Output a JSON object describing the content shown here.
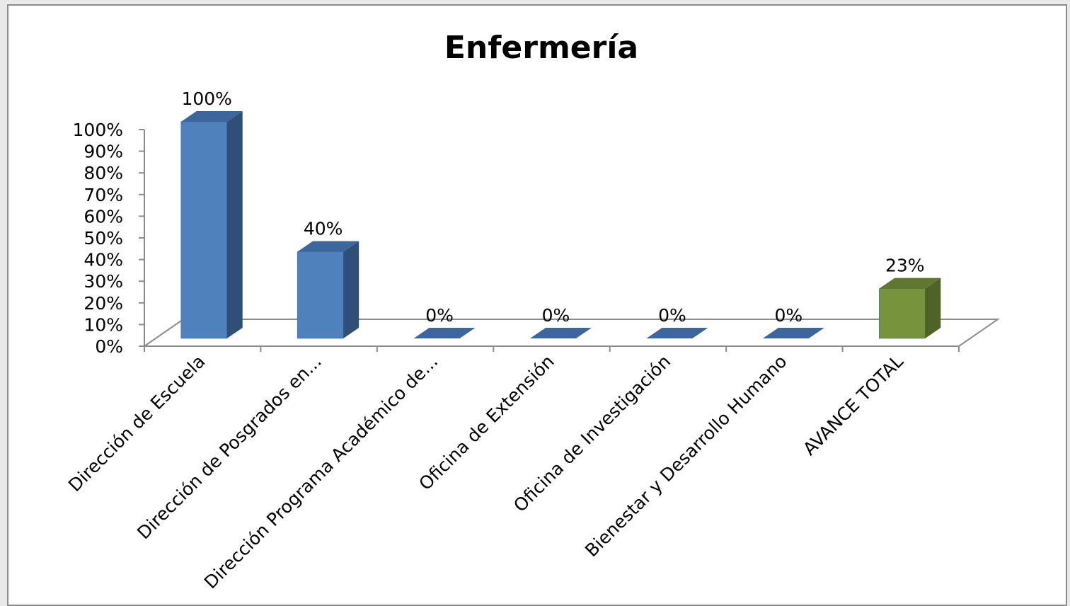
{
  "chart_data": {
    "type": "bar",
    "title": "Enfermería",
    "xlabel": "",
    "ylabel": "",
    "ylim": [
      0,
      100
    ],
    "yticks": [
      "0%",
      "10%",
      "20%",
      "30%",
      "40%",
      "50%",
      "60%",
      "70%",
      "80%",
      "90%",
      "100%"
    ],
    "categories": [
      "Dirección de Escuela",
      "Dirección de Posgrados en...",
      "Dirección Programa Académico de...",
      "Oficina de Extensión",
      "Oficina de Investigación",
      "Bienestar y Desarrollo Humano",
      "AVANCE TOTAL"
    ],
    "values": [
      100,
      40,
      0,
      0,
      0,
      0,
      23
    ],
    "data_labels": [
      "100%",
      "40%",
      "0%",
      "0%",
      "0%",
      "0%",
      "23%"
    ],
    "grid": false,
    "legend": "none",
    "colors": {
      "bar_front": "#4f81bd",
      "bar_side": "#2f4f78",
      "bar_top": "#3d669c",
      "total_front": "#77933c",
      "total_side": "#4f6228",
      "total_top": "#5f7730",
      "axis": "#8c8c8c",
      "text": "#000000"
    }
  }
}
